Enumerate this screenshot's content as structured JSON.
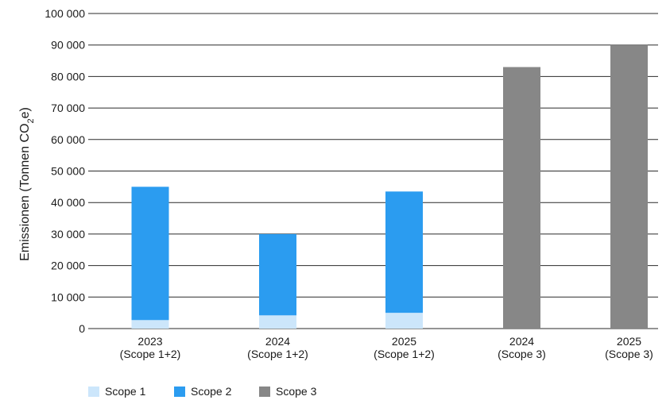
{
  "chart_data": {
    "type": "bar",
    "stacked": true,
    "ylabel_main": "Emissionen (Tonnen CO",
    "ylabel_sub": "2",
    "ylabel_tail": "e)",
    "ylim": [
      0,
      100000
    ],
    "y_ticks": [
      0,
      10000,
      20000,
      30000,
      40000,
      50000,
      60000,
      70000,
      80000,
      90000,
      100000
    ],
    "y_tick_labels": [
      "0",
      "10 000",
      "20 000",
      "30 000",
      "40 000",
      "50 000",
      "60 000",
      "70 000",
      "80 000",
      "90 000",
      "100 000"
    ],
    "grid": true,
    "categories": [
      {
        "year": "2023",
        "scope": "(Scope 1+2)"
      },
      {
        "year": "2024",
        "scope": "(Scope 1+2)"
      },
      {
        "year": "2025",
        "scope": "(Scope 1+2)"
      },
      {
        "year": "2024",
        "scope": "(Scope 3)"
      },
      {
        "year": "2025",
        "scope": "(Scope 3)"
      }
    ],
    "series": [
      {
        "name": "Scope 1",
        "color": "#cce6fb",
        "values": [
          2700,
          4200,
          5000,
          0,
          0
        ]
      },
      {
        "name": "Scope 2",
        "color": "#2b9cf0",
        "values": [
          42300,
          25800,
          38500,
          0,
          0
        ]
      },
      {
        "name": "Scope 3",
        "color": "#878787",
        "values": [
          0,
          0,
          0,
          83000,
          90000
        ]
      }
    ],
    "legend_position": "bottom-left"
  }
}
